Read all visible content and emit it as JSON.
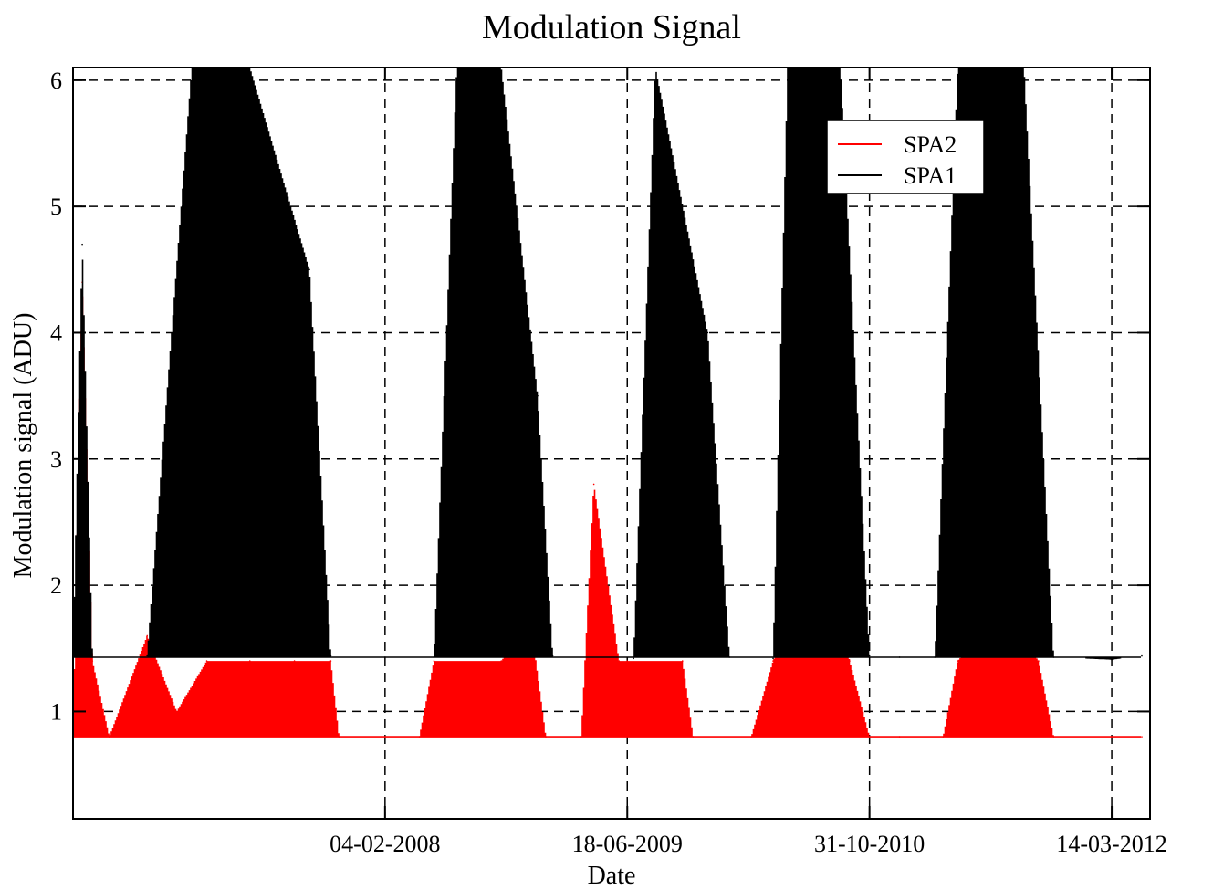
{
  "chart_data": {
    "type": "line",
    "title": "Modulation Signal",
    "xlabel": "Date",
    "ylabel": "Modulation signal (ADU)",
    "x_axis_kind": "date",
    "x_tick_labels": [
      "04-02-2008",
      "18-06-2009",
      "31-10-2010",
      "14-03-2012"
    ],
    "xlim": [
      "2006-05-01",
      "2012-06-01"
    ],
    "ylim": [
      0.15,
      6.1
    ],
    "y_ticks": [
      1,
      2,
      3,
      4,
      5,
      6
    ],
    "grid": true,
    "legend_placement": "top-right",
    "series": [
      {
        "name": "SPA2",
        "color": "#ff0000",
        "baseline": 0.8,
        "high_level": 1.4,
        "points": [
          [
            "2006-05-01",
            0.8
          ],
          [
            "2006-05-20",
            4.4
          ],
          [
            "2006-06-10",
            1.4
          ],
          [
            "2006-07-15",
            0.8
          ],
          [
            "2006-10-01",
            1.6
          ],
          [
            "2006-12-01",
            1.0
          ],
          [
            "2007-02-01",
            1.4
          ],
          [
            "2007-05-01",
            1.4
          ],
          [
            "2007-08-01",
            1.4
          ],
          [
            "2007-10-15",
            1.4
          ],
          [
            "2007-11-01",
            0.8
          ],
          [
            "2008-02-04",
            0.8
          ],
          [
            "2008-04-15",
            0.8
          ],
          [
            "2008-05-15",
            1.4
          ],
          [
            "2008-10-01",
            1.4
          ],
          [
            "2008-12-01",
            1.7
          ],
          [
            "2009-01-01",
            0.8
          ],
          [
            "2009-03-15",
            0.8
          ],
          [
            "2009-04-10",
            2.8
          ],
          [
            "2009-06-01",
            1.4
          ],
          [
            "2009-06-18",
            1.4
          ],
          [
            "2009-10-10",
            1.4
          ],
          [
            "2009-11-01",
            0.8
          ],
          [
            "2010-03-01",
            0.8
          ],
          [
            "2010-04-15",
            1.4
          ],
          [
            "2010-08-01",
            2.4
          ],
          [
            "2010-09-20",
            1.4
          ],
          [
            "2010-10-31",
            0.8
          ],
          [
            "2011-01-01",
            0.8
          ],
          [
            "2011-04-01",
            0.8
          ],
          [
            "2011-05-01",
            1.4
          ],
          [
            "2011-08-01",
            1.8
          ],
          [
            "2011-10-15",
            1.4
          ],
          [
            "2011-11-15",
            0.8
          ],
          [
            "2012-03-14",
            0.8
          ],
          [
            "2012-05-15",
            0.8
          ]
        ]
      },
      {
        "name": "SPA1",
        "color": "#000000",
        "baseline": 1.43,
        "points": [
          [
            "2006-05-01",
            1.42
          ],
          [
            "2006-05-20",
            4.7
          ],
          [
            "2006-06-10",
            1.43
          ],
          [
            "2006-10-01",
            1.44
          ],
          [
            "2007-01-01",
            6.1
          ],
          [
            "2007-05-01",
            6.1
          ],
          [
            "2007-09-01",
            4.5
          ],
          [
            "2007-10-15",
            1.44
          ],
          [
            "2008-02-04",
            1.43
          ],
          [
            "2008-05-15",
            1.43
          ],
          [
            "2008-07-01",
            6.1
          ],
          [
            "2008-10-01",
            6.1
          ],
          [
            "2008-12-15",
            3.5
          ],
          [
            "2009-01-15",
            1.44
          ],
          [
            "2009-06-18",
            1.42
          ],
          [
            "2009-07-01",
            1.42
          ],
          [
            "2009-08-15",
            6.1
          ],
          [
            "2009-12-01",
            4.0
          ],
          [
            "2010-01-15",
            1.43
          ],
          [
            "2010-04-15",
            1.42
          ],
          [
            "2010-05-15",
            6.1
          ],
          [
            "2010-09-01",
            6.1
          ],
          [
            "2010-10-31",
            1.44
          ],
          [
            "2011-01-01",
            1.43
          ],
          [
            "2011-03-15",
            1.43
          ],
          [
            "2011-05-01",
            6.1
          ],
          [
            "2011-09-15",
            6.1
          ],
          [
            "2011-11-15",
            1.43
          ],
          [
            "2012-03-14",
            1.41
          ],
          [
            "2012-05-15",
            1.44
          ]
        ]
      }
    ]
  }
}
